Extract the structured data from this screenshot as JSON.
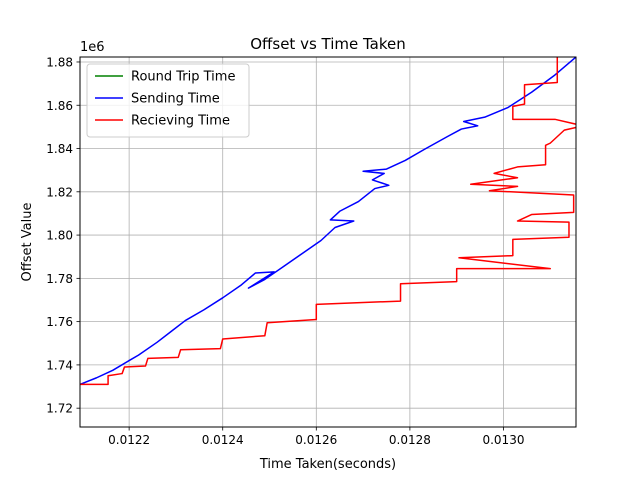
{
  "chart_data": {
    "type": "line",
    "title": "Offset vs Time Taken",
    "xlabel": "Time Taken(seconds)",
    "ylabel": "Offset Value",
    "y_offset_label": "1e6",
    "xlim": [
      0.012095,
      0.013155
    ],
    "ylim": [
      1.7113,
      1.8823
    ],
    "x_ticks": [
      0.0122,
      0.0124,
      0.0126,
      0.0128,
      0.013
    ],
    "x_tick_labels": [
      "0.0122",
      "0.0124",
      "0.0126",
      "0.0128",
      "0.0130"
    ],
    "y_ticks": [
      1.72,
      1.74,
      1.76,
      1.78,
      1.8,
      1.82,
      1.84,
      1.86,
      1.88
    ],
    "y_tick_labels": [
      "1.72",
      "1.74",
      "1.76",
      "1.78",
      "1.80",
      "1.82",
      "1.84",
      "1.86",
      "1.88"
    ],
    "grid": true,
    "legend_position": "top-left",
    "series": [
      {
        "name": "Round Trip Time",
        "color": "#008000",
        "points": []
      },
      {
        "name": "Sending Time",
        "color": "#0000ff",
        "points": [
          [
            0.012095,
            1.731
          ],
          [
            0.01213,
            1.734
          ],
          [
            0.012165,
            1.7375
          ],
          [
            0.0122,
            1.742
          ],
          [
            0.01222,
            1.7445
          ],
          [
            0.01226,
            1.7505
          ],
          [
            0.01229,
            1.7555
          ],
          [
            0.01232,
            1.7605
          ],
          [
            0.01236,
            1.7655
          ],
          [
            0.0124,
            1.771
          ],
          [
            0.01244,
            1.777
          ],
          [
            0.01247,
            1.7825
          ],
          [
            0.01251,
            1.783
          ],
          [
            0.012455,
            1.7755
          ],
          [
            0.01249,
            1.7795
          ],
          [
            0.01253,
            1.7855
          ],
          [
            0.01257,
            1.7915
          ],
          [
            0.01261,
            1.7975
          ],
          [
            0.01264,
            1.8035
          ],
          [
            0.01268,
            1.8065
          ],
          [
            0.01263,
            1.807
          ],
          [
            0.01265,
            1.811
          ],
          [
            0.01269,
            1.8155
          ],
          [
            0.012725,
            1.8215
          ],
          [
            0.012755,
            1.823
          ],
          [
            0.01272,
            1.8255
          ],
          [
            0.012745,
            1.8285
          ],
          [
            0.0127,
            1.8295
          ],
          [
            0.01275,
            1.8305
          ],
          [
            0.01279,
            1.8345
          ],
          [
            0.01283,
            1.8395
          ],
          [
            0.01288,
            1.8455
          ],
          [
            0.01291,
            1.849
          ],
          [
            0.012945,
            1.8505
          ],
          [
            0.012915,
            1.8525
          ],
          [
            0.01296,
            1.8545
          ],
          [
            0.01301,
            1.859
          ],
          [
            0.01306,
            1.866
          ],
          [
            0.01311,
            1.874
          ],
          [
            0.013155,
            1.8823
          ]
        ]
      },
      {
        "name": "Recieving Time",
        "color": "#ff0000",
        "points": [
          [
            0.012095,
            1.731
          ],
          [
            0.012155,
            1.731
          ],
          [
            0.012155,
            1.735
          ],
          [
            0.012185,
            1.736
          ],
          [
            0.01219,
            1.739
          ],
          [
            0.012235,
            1.7395
          ],
          [
            0.01224,
            1.743
          ],
          [
            0.012305,
            1.7435
          ],
          [
            0.01231,
            1.747
          ],
          [
            0.012395,
            1.7475
          ],
          [
            0.0124,
            1.752
          ],
          [
            0.01249,
            1.7535
          ],
          [
            0.012495,
            1.7595
          ],
          [
            0.0126,
            1.761
          ],
          [
            0.0126,
            1.768
          ],
          [
            0.01278,
            1.7695
          ],
          [
            0.01278,
            1.7775
          ],
          [
            0.0129,
            1.7785
          ],
          [
            0.0129,
            1.7845
          ],
          [
            0.0131,
            1.7845
          ],
          [
            0.012905,
            1.7895
          ],
          [
            0.01302,
            1.7905
          ],
          [
            0.01302,
            1.798
          ],
          [
            0.01314,
            1.799
          ],
          [
            0.01314,
            1.806
          ],
          [
            0.01303,
            1.8065
          ],
          [
            0.01306,
            1.8095
          ],
          [
            0.01315,
            1.8105
          ],
          [
            0.01315,
            1.8185
          ],
          [
            0.01297,
            1.8205
          ],
          [
            0.01303,
            1.8225
          ],
          [
            0.01293,
            1.8235
          ],
          [
            0.01303,
            1.8265
          ],
          [
            0.01298,
            1.8285
          ],
          [
            0.01303,
            1.8315
          ],
          [
            0.01309,
            1.8325
          ],
          [
            0.01309,
            1.8415
          ],
          [
            0.0131,
            1.8425
          ],
          [
            0.01313,
            1.8485
          ],
          [
            0.01315,
            1.8495
          ],
          [
            0.01317,
            1.8505
          ],
          [
            0.01311,
            1.8535
          ],
          [
            0.01302,
            1.8535
          ],
          [
            0.01302,
            1.8595
          ],
          [
            0.013045,
            1.8605
          ],
          [
            0.013045,
            1.8695
          ],
          [
            0.013115,
            1.8705
          ],
          [
            0.013115,
            1.8823
          ]
        ]
      }
    ]
  }
}
